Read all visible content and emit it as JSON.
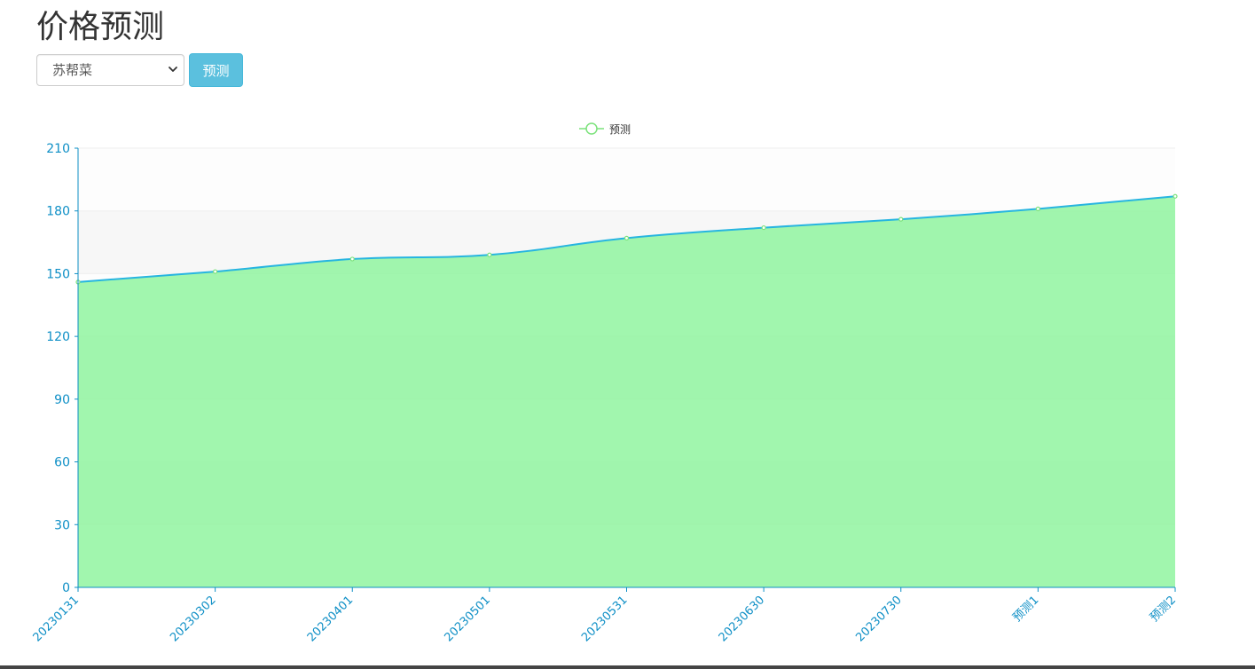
{
  "page": {
    "title": "价格预测"
  },
  "controls": {
    "select_value": "苏帮菜",
    "predict_button": "预测"
  },
  "colors": {
    "line": "#27b5e0",
    "area": "#90f5a0",
    "point": "#7be27b",
    "axis": "#0e8fc6",
    "legend_icon": "#7be27b",
    "button": "#5bc0de"
  },
  "chart_data": {
    "type": "area",
    "legend": [
      "预测"
    ],
    "legend_position": "top-center",
    "categories": [
      "20230131",
      "20230302",
      "20230401",
      "20230501",
      "20230531",
      "20230630",
      "20230730",
      "预测1",
      "预测2"
    ],
    "series": [
      {
        "name": "预测",
        "values": [
          146,
          151,
          157,
          159,
          167,
          172,
          176,
          181,
          187
        ]
      }
    ],
    "ylim": [
      0,
      210
    ],
    "yticks": [
      0,
      30,
      60,
      90,
      120,
      150,
      180,
      210
    ],
    "grid": "horizontal split areas",
    "smooth": true
  }
}
